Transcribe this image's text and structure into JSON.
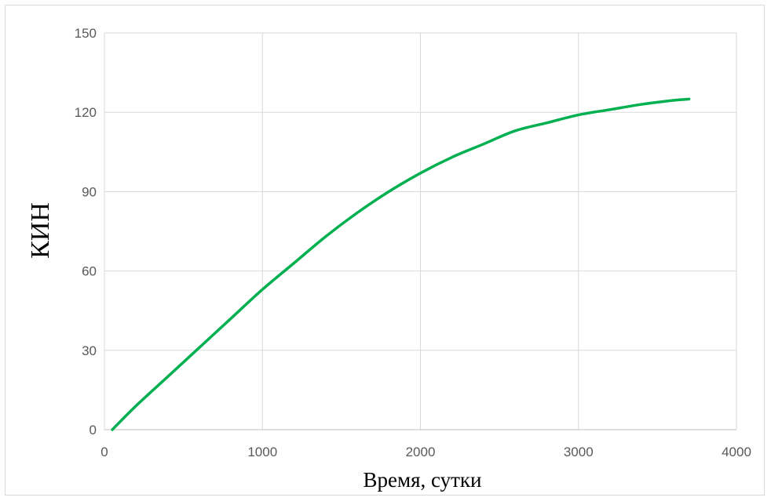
{
  "chart_data": {
    "type": "line",
    "title": "",
    "xlabel": "Время, сутки",
    "ylabel": "КИН",
    "xlim": [
      0,
      4000
    ],
    "ylim": [
      0,
      150
    ],
    "xticks": [
      0,
      1000,
      2000,
      3000,
      4000
    ],
    "yticks": [
      0,
      30,
      60,
      90,
      120,
      150
    ],
    "grid": true,
    "legend": "none",
    "series": [
      {
        "color": "#00b050",
        "x": [
          50,
          200,
          400,
          600,
          800,
          1000,
          1200,
          1400,
          1600,
          1800,
          2000,
          2200,
          2400,
          2600,
          2800,
          3000,
          3200,
          3400,
          3600,
          3700
        ],
        "y": [
          0,
          9,
          20,
          31,
          42,
          53,
          63,
          73,
          82,
          90,
          97,
          103,
          108,
          113,
          116,
          119,
          121,
          123,
          124.5,
          125
        ]
      }
    ]
  }
}
